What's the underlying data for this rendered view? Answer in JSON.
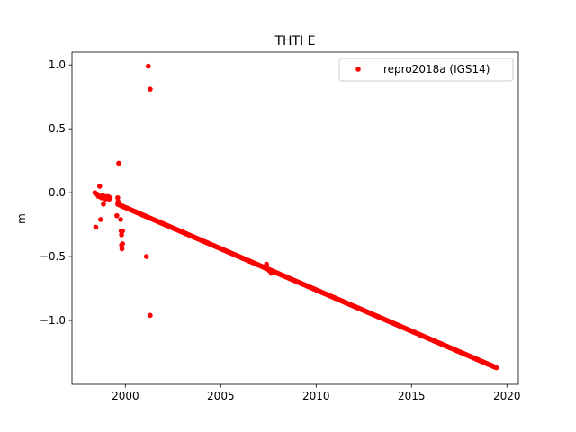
{
  "chart_data": {
    "type": "scatter",
    "title": "THTI E",
    "xlabel": "",
    "ylabel": "m",
    "xlim": [
      1997.2,
      2020.6
    ],
    "ylim": [
      -1.5,
      1.1
    ],
    "xticks": [
      2000,
      2005,
      2010,
      2015,
      2020
    ],
    "xtick_labels": [
      "2000",
      "2005",
      "2010",
      "2015",
      "2020"
    ],
    "yticks": [
      -1.0,
      -0.5,
      0.0,
      0.5,
      1.0
    ],
    "ytick_labels": [
      "−1.0",
      "−0.5",
      "0.0",
      "0.5",
      "1.0"
    ],
    "grid": false,
    "legend_position": "top-right",
    "color": "#ff0000",
    "series": [
      {
        "name": "repro2018a (IGS14)",
        "trend": {
          "x_start": 1999.6,
          "y_start": -0.09,
          "x_end": 2019.45,
          "y_end": -1.37
        },
        "points": [
          [
            1998.4,
            0.0
          ],
          [
            1998.45,
            -0.27
          ],
          [
            1998.5,
            -0.01
          ],
          [
            1998.55,
            -0.02
          ],
          [
            1998.6,
            -0.03
          ],
          [
            1998.65,
            0.05
          ],
          [
            1998.7,
            -0.21
          ],
          [
            1998.75,
            -0.04
          ],
          [
            1998.8,
            -0.02
          ],
          [
            1998.85,
            -0.09
          ],
          [
            1998.9,
            -0.03
          ],
          [
            1998.95,
            -0.05
          ],
          [
            1999.0,
            -0.03
          ],
          [
            1999.05,
            -0.04
          ],
          [
            1999.1,
            -0.03
          ],
          [
            1999.15,
            -0.05
          ],
          [
            1999.2,
            -0.04
          ],
          [
            1999.55,
            -0.18
          ],
          [
            1999.6,
            -0.04
          ],
          [
            1999.62,
            -0.07
          ],
          [
            1999.65,
            0.23
          ],
          [
            1999.75,
            -0.21
          ],
          [
            1999.78,
            -0.3
          ],
          [
            1999.8,
            -0.33
          ],
          [
            1999.8,
            -0.41
          ],
          [
            1999.82,
            -0.44
          ],
          [
            1999.85,
            -0.3
          ],
          [
            1999.85,
            -0.4
          ],
          [
            2001.1,
            -0.5
          ],
          [
            2001.2,
            0.99
          ],
          [
            2001.3,
            0.81
          ],
          [
            2001.3,
            -0.96
          ],
          [
            2007.4,
            -0.56
          ],
          [
            2007.55,
            -0.61
          ],
          [
            2007.65,
            -0.63
          ]
        ]
      }
    ]
  }
}
